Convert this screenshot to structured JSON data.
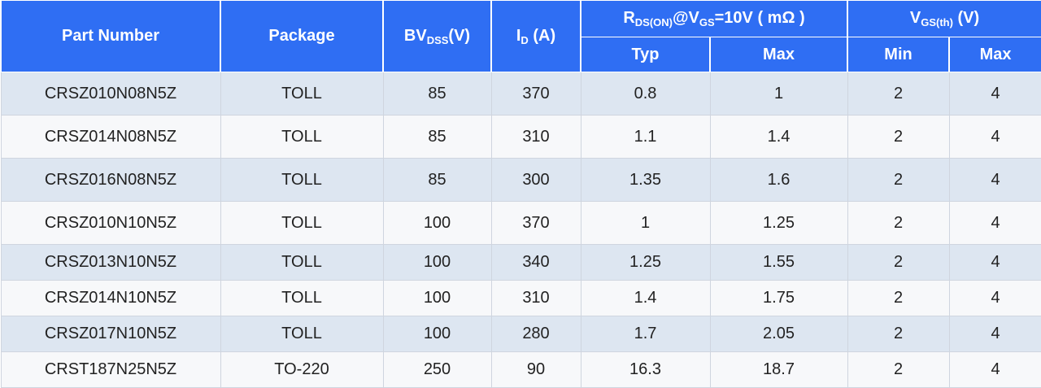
{
  "header": {
    "part_number": "Part Number",
    "package": "Package",
    "bvdss": {
      "main": "BV",
      "sub": "DSS",
      "unit": "(V)"
    },
    "id": {
      "main": "I",
      "sub": "D",
      "unit": " (A)"
    },
    "rdson": {
      "r": "R",
      "r_sub": "DS(ON)",
      "at_v": "@V",
      "v_sub": "GS",
      "tail": "=10V ( mΩ )"
    },
    "vgsth": {
      "main": "V",
      "sub": "GS(th)",
      "unit": " (V)"
    },
    "typ": "Typ",
    "max": "Max",
    "min": "Min",
    "max2": "Max"
  },
  "rows": [
    {
      "part": "CRSZ010N08N5Z",
      "package": "TOLL",
      "bvdss": "85",
      "id": "370",
      "rds_typ": "0.8",
      "rds_max": "1",
      "vgs_min": "2",
      "vgs_max": "4"
    },
    {
      "part": "CRSZ014N08N5Z",
      "package": "TOLL",
      "bvdss": "85",
      "id": "310",
      "rds_typ": "1.1",
      "rds_max": "1.4",
      "vgs_min": "2",
      "vgs_max": "4"
    },
    {
      "part": "CRSZ016N08N5Z",
      "package": "TOLL",
      "bvdss": "85",
      "id": "300",
      "rds_typ": "1.35",
      "rds_max": "1.6",
      "vgs_min": "2",
      "vgs_max": "4"
    },
    {
      "part": "CRSZ010N10N5Z",
      "package": "TOLL",
      "bvdss": "100",
      "id": "370",
      "rds_typ": "1",
      "rds_max": "1.25",
      "vgs_min": "2",
      "vgs_max": "4"
    },
    {
      "part": "CRSZ013N10N5Z",
      "package": "TOLL",
      "bvdss": "100",
      "id": "340",
      "rds_typ": "1.25",
      "rds_max": "1.55",
      "vgs_min": "2",
      "vgs_max": "4"
    },
    {
      "part": "CRSZ014N10N5Z",
      "package": "TOLL",
      "bvdss": "100",
      "id": "310",
      "rds_typ": "1.4",
      "rds_max": "1.75",
      "vgs_min": "2",
      "vgs_max": "4"
    },
    {
      "part": "CRSZ017N10N5Z",
      "package": "TOLL",
      "bvdss": "100",
      "id": "280",
      "rds_typ": "1.7",
      "rds_max": "2.05",
      "vgs_min": "2",
      "vgs_max": "4"
    },
    {
      "part": "CRST187N25N5Z",
      "package": "TO-220",
      "bvdss": "250",
      "id": "90",
      "rds_typ": "16.3",
      "rds_max": "18.7",
      "vgs_min": "2",
      "vgs_max": "4"
    }
  ]
}
